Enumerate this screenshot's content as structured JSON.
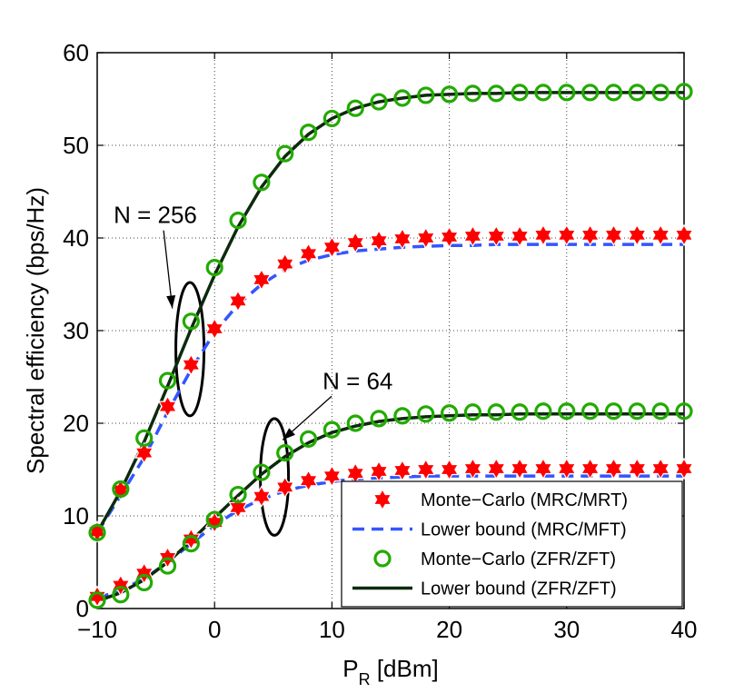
{
  "chart_data": {
    "type": "line",
    "xlabel_main": "P",
    "xlabel_sub": "R",
    "xlabel_rest": " [dBm]",
    "ylabel": "Spectral efficiency (bps/Hz)",
    "xlim": [
      -10,
      40
    ],
    "ylim": [
      0,
      60
    ],
    "xticks": [
      -10,
      0,
      10,
      20,
      30,
      40
    ],
    "xtick_labels": [
      "−10",
      "0",
      "10",
      "20",
      "30",
      "40"
    ],
    "yticks": [
      0,
      10,
      20,
      30,
      40,
      50,
      60
    ],
    "ytick_labels": [
      "0",
      "10",
      "20",
      "30",
      "40",
      "50",
      "60"
    ],
    "grid": true,
    "legend_position": "bottom-right",
    "colors": {
      "mrc_marker": "#ff0000",
      "mrc_bound": "#3355ff",
      "zf_marker": "#22aa00",
      "zf_bound": "#0d2a0d"
    },
    "legend": [
      {
        "label": "Monte−Carlo (MRC/MRT)",
        "style": "hexagram"
      },
      {
        "label": "Lower bound (MRC/MFT)",
        "style": "dashed"
      },
      {
        "label": "Monte−Carlo (ZFR/ZFT)",
        "style": "circle"
      },
      {
        "label": "Lower bound (ZFR/ZFT)",
        "style": "solid"
      }
    ],
    "annotations": [
      {
        "text": "N = 256",
        "x": -8.6,
        "y": 41.6,
        "arrow_to": [
          -3.6,
          32.4
        ],
        "ellipse_center": [
          -2.1,
          28.0
        ],
        "ellipse_radius": [
          1.2,
          7.2
        ]
      },
      {
        "text": "N = 64",
        "x": 9.2,
        "y": 23.7,
        "arrow_to": [
          5.8,
          18.2
        ],
        "ellipse_center": [
          5.1,
          14.2
        ],
        "ellipse_radius": [
          1.2,
          6.3
        ]
      }
    ],
    "series": [
      {
        "name": "Monte−Carlo (MRC/MRT), N = 256",
        "style": "hexagram",
        "x": [
          -10,
          -8,
          -6,
          -4,
          -2,
          0,
          2,
          4,
          6,
          8,
          10,
          12,
          14,
          16,
          18,
          20,
          22,
          24,
          26,
          28,
          30,
          32,
          34,
          36,
          38,
          40
        ],
        "values": [
          8.3,
          12.8,
          16.8,
          21.8,
          26.3,
          30.2,
          33.2,
          35.5,
          37.2,
          38.3,
          39.0,
          39.5,
          39.7,
          39.9,
          40.0,
          40.1,
          40.2,
          40.2,
          40.2,
          40.3,
          40.3,
          40.3,
          40.3,
          40.3,
          40.3,
          40.3
        ]
      },
      {
        "name": "Lower bound (MRC/MFT), N = 256",
        "style": "dashed",
        "x": [
          -10,
          -8,
          -6,
          -4,
          -2,
          0,
          2,
          4,
          6,
          8,
          10,
          12,
          14,
          16,
          18,
          20,
          22,
          24,
          26,
          28,
          30,
          32,
          34,
          36,
          38,
          40
        ],
        "values": [
          8.2,
          12.2,
          16.3,
          21.2,
          25.8,
          29.8,
          32.8,
          35.0,
          36.6,
          37.6,
          38.2,
          38.6,
          38.8,
          39.0,
          39.1,
          39.2,
          39.2,
          39.3,
          39.3,
          39.3,
          39.3,
          39.3,
          39.3,
          39.3,
          39.3,
          39.3
        ]
      },
      {
        "name": "Monte−Carlo (ZFR/ZFT), N = 256",
        "style": "circle",
        "x": [
          -10,
          -8,
          -6,
          -4,
          -2,
          0,
          2,
          4,
          6,
          8,
          10,
          12,
          14,
          16,
          18,
          20,
          22,
          24,
          26,
          28,
          30,
          32,
          34,
          36,
          38,
          40
        ],
        "values": [
          8.2,
          12.9,
          18.4,
          24.6,
          31.0,
          36.8,
          41.9,
          46.0,
          49.1,
          51.4,
          52.9,
          54.0,
          54.7,
          55.1,
          55.4,
          55.5,
          55.6,
          55.6,
          55.7,
          55.7,
          55.7,
          55.7,
          55.7,
          55.7,
          55.7,
          55.8
        ]
      },
      {
        "name": "Lower bound (ZFR/ZFT), N = 256",
        "style": "solid",
        "x": [
          -10,
          -8,
          -6,
          -4,
          -2,
          0,
          2,
          4,
          6,
          8,
          10,
          12,
          14,
          16,
          18,
          20,
          22,
          24,
          26,
          28,
          30,
          32,
          34,
          36,
          38,
          40
        ],
        "values": [
          8.2,
          12.7,
          18.0,
          24.0,
          30.2,
          36.0,
          41.2,
          45.5,
          48.8,
          51.2,
          52.9,
          54.0,
          54.7,
          55.1,
          55.4,
          55.5,
          55.6,
          55.6,
          55.7,
          55.7,
          55.7,
          55.7,
          55.7,
          55.7,
          55.7,
          55.7
        ]
      },
      {
        "name": "Monte−Carlo (MRC/MRT), N = 64",
        "style": "hexagram",
        "x": [
          -10,
          -8,
          -6,
          -4,
          -2,
          0,
          2,
          4,
          6,
          8,
          10,
          12,
          14,
          16,
          18,
          20,
          22,
          24,
          26,
          28,
          30,
          32,
          34,
          36,
          38,
          40
        ],
        "values": [
          1.3,
          2.5,
          3.8,
          5.5,
          7.5,
          9.3,
          10.9,
          12.1,
          13.1,
          13.8,
          14.3,
          14.6,
          14.8,
          14.9,
          15.0,
          15.0,
          15.1,
          15.1,
          15.1,
          15.1,
          15.1,
          15.1,
          15.1,
          15.1,
          15.1,
          15.1
        ]
      },
      {
        "name": "Lower bound (MRC/MFT), N = 64",
        "style": "dashed",
        "x": [
          -10,
          -8,
          -6,
          -4,
          -2,
          0,
          2,
          4,
          6,
          8,
          10,
          12,
          14,
          16,
          18,
          20,
          22,
          24,
          26,
          28,
          30,
          32,
          34,
          36,
          38,
          40
        ],
        "values": [
          1.1,
          2.0,
          3.2,
          5.0,
          7.0,
          9.0,
          10.6,
          11.8,
          12.7,
          13.3,
          13.7,
          14.0,
          14.1,
          14.2,
          14.3,
          14.3,
          14.3,
          14.3,
          14.3,
          14.3,
          14.3,
          14.3,
          14.3,
          14.3,
          14.3,
          14.3
        ]
      },
      {
        "name": "Monte−Carlo (ZFR/ZFT), N = 64",
        "style": "circle",
        "x": [
          -10,
          -8,
          -6,
          -4,
          -2,
          0,
          2,
          4,
          6,
          8,
          10,
          12,
          14,
          16,
          18,
          20,
          22,
          24,
          26,
          28,
          30,
          32,
          34,
          36,
          38,
          40
        ],
        "values": [
          0.9,
          1.5,
          2.8,
          4.6,
          7.0,
          9.6,
          12.3,
          14.7,
          16.8,
          18.3,
          19.3,
          20.0,
          20.5,
          20.8,
          21.0,
          21.1,
          21.2,
          21.2,
          21.2,
          21.3,
          21.3,
          21.3,
          21.3,
          21.3,
          21.3,
          21.3
        ]
      },
      {
        "name": "Lower bound (ZFR/ZFT), N = 64",
        "style": "solid",
        "x": [
          -10,
          -8,
          -6,
          -4,
          -2,
          0,
          2,
          4,
          6,
          8,
          10,
          12,
          14,
          16,
          18,
          20,
          22,
          24,
          26,
          28,
          30,
          32,
          34,
          36,
          38,
          40
        ],
        "values": [
          0.8,
          1.7,
          3.1,
          5.0,
          7.3,
          9.8,
          12.2,
          14.5,
          16.4,
          17.9,
          19.0,
          19.7,
          20.2,
          20.5,
          20.7,
          20.8,
          20.9,
          20.9,
          21.0,
          21.0,
          21.0,
          21.0,
          21.0,
          21.0,
          21.0,
          21.0
        ]
      }
    ]
  }
}
